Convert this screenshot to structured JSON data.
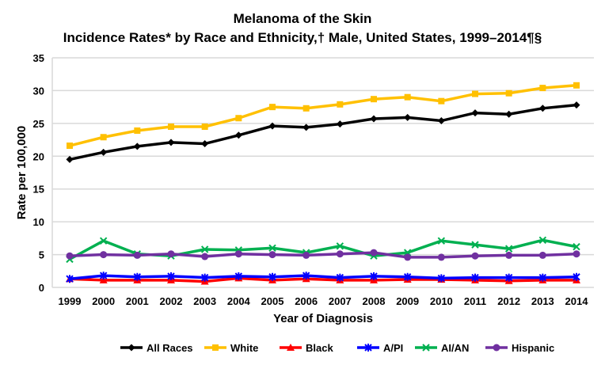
{
  "chart_data": {
    "type": "line",
    "title": "Melanoma of the Skin",
    "subtitle": "Incidence Rates* by Race and Ethnicity,† Male, United States, 1999–2014¶§",
    "xlabel": "Year of Diagnosis",
    "ylabel": "Rate per 100,000",
    "ylim": [
      0,
      35
    ],
    "yticks": [
      0,
      5,
      10,
      15,
      20,
      25,
      30,
      35
    ],
    "grid": true,
    "legend": "bottom",
    "categories": [
      "1999",
      "2000",
      "2001",
      "2002",
      "2003",
      "2004",
      "2005",
      "2006",
      "2007",
      "2008",
      "2009",
      "2010",
      "2011",
      "2012",
      "2013",
      "2014"
    ],
    "series": [
      {
        "name": "All Races",
        "color": "#000000",
        "marker": "diamond",
        "values": [
          19.5,
          20.6,
          21.5,
          22.1,
          21.9,
          23.2,
          24.6,
          24.4,
          24.9,
          25.7,
          25.9,
          25.4,
          26.6,
          26.4,
          27.3,
          27.8
        ]
      },
      {
        "name": "White",
        "color": "#FFC000",
        "marker": "square",
        "values": [
          21.6,
          22.9,
          23.9,
          24.5,
          24.5,
          25.8,
          27.5,
          27.3,
          27.9,
          28.7,
          29.0,
          28.4,
          29.5,
          29.6,
          30.4,
          30.8
        ]
      },
      {
        "name": "Black",
        "color": "#FF0000",
        "marker": "triangle",
        "values": [
          1.3,
          1.1,
          1.1,
          1.1,
          0.9,
          1.4,
          1.1,
          1.3,
          1.1,
          1.1,
          1.2,
          1.2,
          1.1,
          1.0,
          1.1,
          1.1
        ]
      },
      {
        "name": "A/PI",
        "color": "#0000FF",
        "marker": "star",
        "values": [
          1.3,
          1.8,
          1.6,
          1.7,
          1.5,
          1.7,
          1.6,
          1.8,
          1.5,
          1.7,
          1.6,
          1.4,
          1.5,
          1.5,
          1.5,
          1.6
        ]
      },
      {
        "name": "AI/AN",
        "color": "#00B050",
        "marker": "x",
        "values": [
          4.3,
          7.1,
          5.1,
          4.8,
          5.8,
          5.7,
          6.0,
          5.3,
          6.3,
          4.8,
          5.3,
          7.1,
          6.5,
          5.9,
          7.2,
          6.2
        ]
      },
      {
        "name": "Hispanic",
        "color": "#7030A0",
        "marker": "circle",
        "values": [
          4.8,
          5.0,
          4.9,
          5.1,
          4.7,
          5.1,
          5.0,
          4.9,
          5.1,
          5.3,
          4.6,
          4.6,
          4.8,
          4.9,
          4.9,
          5.1
        ]
      }
    ]
  }
}
